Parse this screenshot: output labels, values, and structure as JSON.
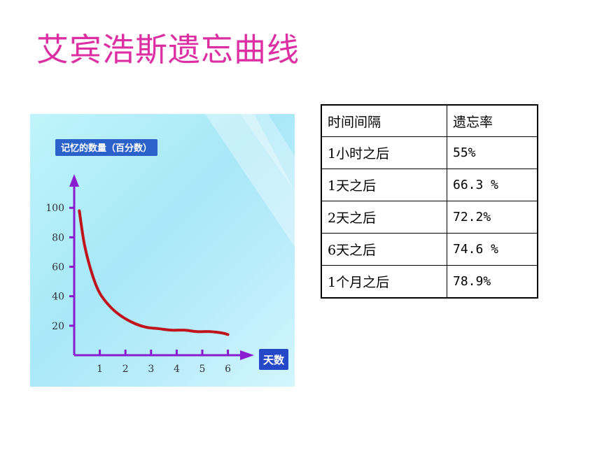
{
  "title": "艾宾浩斯遗忘曲线",
  "colors": {
    "title": "#dd2fa4",
    "axis": "#8a1ccf",
    "curve": "#c0141b",
    "ylabel_bg": "#2a62c9",
    "xlabel_bg": "#2548c8"
  },
  "chart_data": {
    "type": "line",
    "ylabel": "记忆的数量（百分数）",
    "xlabel": "天数",
    "y_ticks": [
      "100",
      "80",
      "60",
      "40",
      "20"
    ],
    "x_ticks": [
      "1",
      "2",
      "3",
      "4",
      "5",
      "6"
    ],
    "ylim": [
      0,
      100
    ],
    "xlim": [
      0,
      6
    ],
    "series": [
      {
        "x": [
          0.2,
          0.4,
          0.7,
          1.0,
          1.4,
          1.8,
          2.3,
          2.8,
          3.3,
          3.8,
          4.3,
          4.8,
          5.3,
          5.8,
          6.0
        ],
        "y": [
          98,
          75,
          55,
          42,
          33,
          27,
          22,
          19,
          18,
          17,
          17,
          16,
          16,
          15,
          14
        ]
      }
    ]
  },
  "table": {
    "header": [
      "时间间隔",
      "遗忘率"
    ],
    "rows": [
      [
        "1小时之后",
        "55%"
      ],
      [
        "1天之后",
        "66.3 %"
      ],
      [
        "2天之后",
        "72.2%"
      ],
      [
        "6天之后",
        "74.6 %"
      ],
      [
        "1个月之后",
        "78.9%"
      ]
    ]
  }
}
